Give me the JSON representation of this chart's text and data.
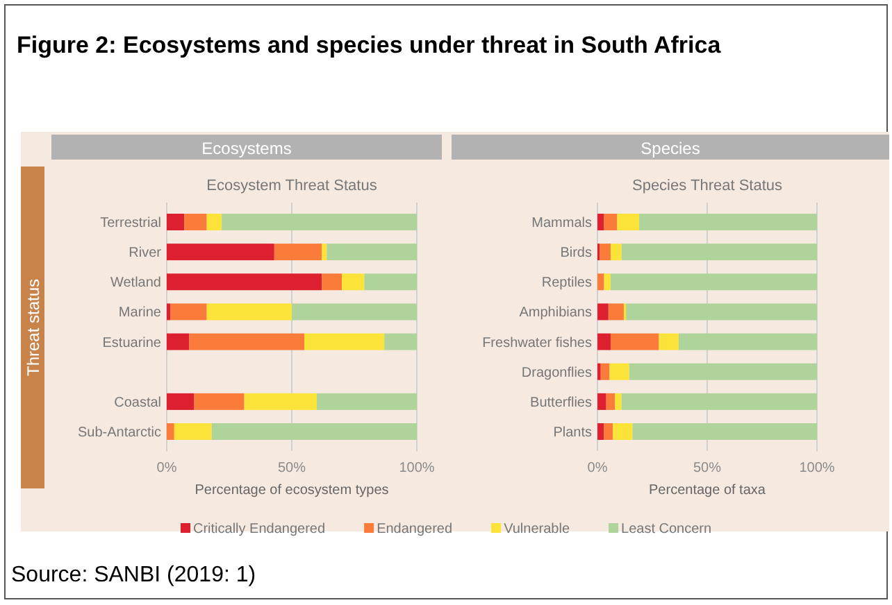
{
  "chart_data": [
    {
      "type": "bar",
      "orientation": "horizontal",
      "stacked": true,
      "title": "Ecosystem Threat Status",
      "subtitle": "Ecosystems",
      "xlabel": "Percentage of ecosystem types",
      "categories": [
        "Terrestrial",
        "River",
        "Wetland",
        "Marine",
        "Estuarine",
        null,
        "Coastal",
        "Sub-Antarctic"
      ],
      "xlim": [
        0,
        100
      ],
      "xticks": [
        {
          "value": 0,
          "label": "0%"
        },
        {
          "value": 50,
          "label": "50%"
        },
        {
          "value": 100,
          "label": "100%"
        }
      ],
      "grid": "x",
      "legend": "bottom",
      "series": [
        {
          "name": "Critically Endangered",
          "color": "#dd2030",
          "values": [
            7,
            43,
            62,
            1.5,
            9,
            null,
            11,
            0
          ]
        },
        {
          "name": "Endangered",
          "color": "#fb7b3b",
          "values": [
            9,
            19,
            8,
            14.5,
            46,
            null,
            20,
            3
          ]
        },
        {
          "name": "Vulnerable",
          "color": "#fbe33a",
          "values": [
            6,
            2,
            9,
            34,
            32,
            null,
            29,
            15
          ]
        },
        {
          "name": "Least Concern",
          "color": "#afd49b",
          "values": [
            78,
            36,
            21,
            50,
            13,
            null,
            40,
            82
          ]
        }
      ],
      "annotations": [
        "Figure 2: Ecosystems and species under threat in South Africa",
        "Threat status",
        "Source: SANBI (2019: 1)"
      ]
    },
    {
      "type": "bar",
      "orientation": "horizontal",
      "stacked": true,
      "title": "Species Threat Status",
      "subtitle": "Species",
      "xlabel": "Percentage of taxa",
      "categories": [
        "Mammals",
        "Birds",
        "Reptiles",
        "Amphibians",
        "Freshwater fishes",
        "Dragonflies",
        "Butterflies",
        "Plants"
      ],
      "xlim": [
        0,
        100
      ],
      "xticks": [
        {
          "value": 0,
          "label": "0%"
        },
        {
          "value": 50,
          "label": "50%"
        },
        {
          "value": 100,
          "label": "100%"
        }
      ],
      "grid": "x",
      "series": [
        {
          "color": "#dd2030",
          "values": [
            3,
            1,
            0,
            5,
            6,
            1.5,
            4,
            3
          ]
        },
        {
          "color": "#fb7b3b",
          "values": [
            6,
            5,
            3,
            7,
            22,
            4,
            4,
            4
          ]
        },
        {
          "color": "#fbe33a",
          "values": [
            10,
            5,
            3,
            1,
            9,
            9,
            3,
            9
          ]
        },
        {
          "color": "#afd49b",
          "values": [
            81,
            89,
            94,
            87,
            63,
            85.5,
            89,
            84
          ]
        }
      ]
    }
  ]
}
